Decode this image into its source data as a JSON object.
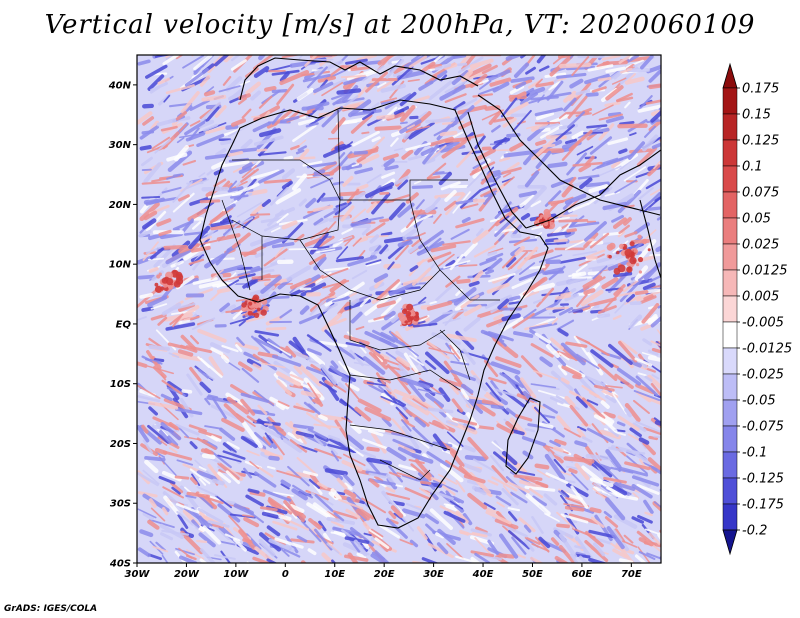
{
  "title": "Vertical velocity [m/s] at 200hPa, VT: 2020060109",
  "credit": "GrADS: IGES/COLA",
  "map": {
    "lon_range": [
      -30,
      76
    ],
    "lat_range": [
      -40,
      45
    ],
    "lat_ticks": [
      {
        "value": 40,
        "label": "40N"
      },
      {
        "value": 30,
        "label": "30N"
      },
      {
        "value": 20,
        "label": "20N"
      },
      {
        "value": 10,
        "label": "10N"
      },
      {
        "value": 0,
        "label": "EQ"
      },
      {
        "value": -10,
        "label": "10S"
      },
      {
        "value": -20,
        "label": "20S"
      },
      {
        "value": -30,
        "label": "30S"
      },
      {
        "value": -40,
        "label": "40S"
      }
    ],
    "lon_ticks": [
      {
        "value": -30,
        "label": "30W"
      },
      {
        "value": -20,
        "label": "20W"
      },
      {
        "value": -10,
        "label": "10W"
      },
      {
        "value": 0,
        "label": "0"
      },
      {
        "value": 10,
        "label": "10E"
      },
      {
        "value": 20,
        "label": "20E"
      },
      {
        "value": 30,
        "label": "30E"
      },
      {
        "value": 40,
        "label": "40E"
      },
      {
        "value": 50,
        "label": "50E"
      },
      {
        "value": 60,
        "label": "60E"
      },
      {
        "value": 70,
        "label": "70E"
      }
    ]
  },
  "colorbar": {
    "levels": [
      {
        "label": "0.175",
        "color": "#a31515"
      },
      {
        "label": "0.15",
        "color": "#b82525"
      },
      {
        "label": "0.125",
        "color": "#cc3737"
      },
      {
        "label": "0.1",
        "color": "#d94a4a"
      },
      {
        "label": "0.075",
        "color": "#e36464"
      },
      {
        "label": "0.05",
        "color": "#ea7e7e"
      },
      {
        "label": "0.025",
        "color": "#f09a9a"
      },
      {
        "label": "0.0125",
        "color": "#f6b8b8"
      },
      {
        "label": "0.005",
        "color": "#fbd6d6"
      },
      {
        "label": "-0.005",
        "color": "#ffffff"
      },
      {
        "label": "-0.0125",
        "color": "#d9d9fb"
      },
      {
        "label": "-0.025",
        "color": "#bdbdf6"
      },
      {
        "label": "-0.05",
        "color": "#a0a0f0"
      },
      {
        "label": "-0.075",
        "color": "#8585ea"
      },
      {
        "label": "-0.1",
        "color": "#6a6ae2"
      },
      {
        "label": "-0.125",
        "color": "#4f4fd8"
      },
      {
        "label": "-0.175",
        "color": "#3636c8"
      },
      {
        "label": "-0.2",
        "color": "#2020b0"
      }
    ],
    "top_color": "#8b0c0c",
    "bottom_color": "#14148f"
  },
  "field_colors": {
    "up_strong": "#d03a3a",
    "up": "#ee8f8f",
    "up_weak": "#f8c8c8",
    "down_weak": "#c8c8f6",
    "down": "#8c8cec",
    "down_strong": "#4a4ad6",
    "coast": "#000000"
  }
}
